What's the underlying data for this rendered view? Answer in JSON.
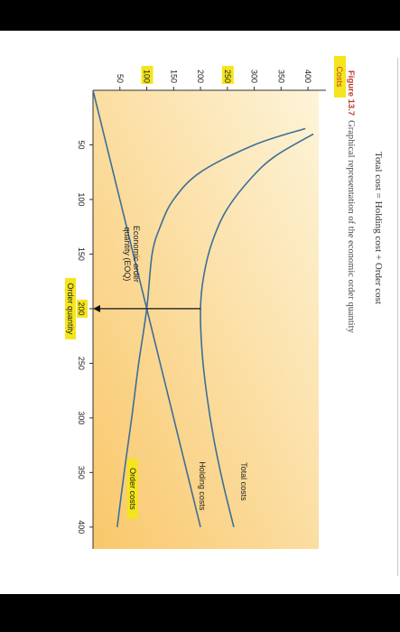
{
  "caption": {
    "figure_label": "Figure 13.7",
    "text": "Graphical representation of the economic order quantity",
    "formula": "Total cost = Holding cost + Order cost"
  },
  "colors": {
    "background_light": "#fdf4d9",
    "background_dark": "#f9c76a",
    "curve": "#3d6e97",
    "highlight": "#f5e51c",
    "axis_label_color": "#c0392b"
  },
  "chart_data": {
    "type": "line",
    "xlabel": "Order quantity",
    "ylabel": "Costs",
    "xlim": [
      0,
      420
    ],
    "ylim": [
      0,
      420
    ],
    "x_ticks": [
      50,
      100,
      150,
      200,
      250,
      300,
      350,
      400
    ],
    "y_ticks": [
      50,
      100,
      150,
      200,
      250,
      300,
      350,
      400
    ],
    "highlighted_x_ticks": [
      200
    ],
    "highlighted_y_ticks": [
      100,
      250
    ],
    "grid": false,
    "series": [
      {
        "name": "Total costs",
        "x": [
          40,
          60,
          80,
          110,
          140,
          170,
          200,
          240,
          280,
          320,
          360,
          400
        ],
        "y": [
          410,
          340,
          295,
          248,
          221,
          206,
          200,
          203,
          212,
          225,
          242,
          262
        ]
      },
      {
        "name": "Holding costs",
        "x": [
          0,
          100,
          200,
          300,
          400
        ],
        "y": [
          0,
          50,
          100,
          150,
          200
        ]
      },
      {
        "name": "Order costs",
        "x": [
          35,
          50,
          75,
          100,
          125,
          150,
          200,
          250,
          300,
          350,
          400
        ],
        "y": [
          395,
          300,
          200,
          150,
          125,
          110,
          100,
          85,
          72,
          58,
          45
        ]
      }
    ],
    "annotations": {
      "eoq_label": "Economic order quantity (EOQ)",
      "eoq_x": 200,
      "eoq_y": 200
    }
  }
}
